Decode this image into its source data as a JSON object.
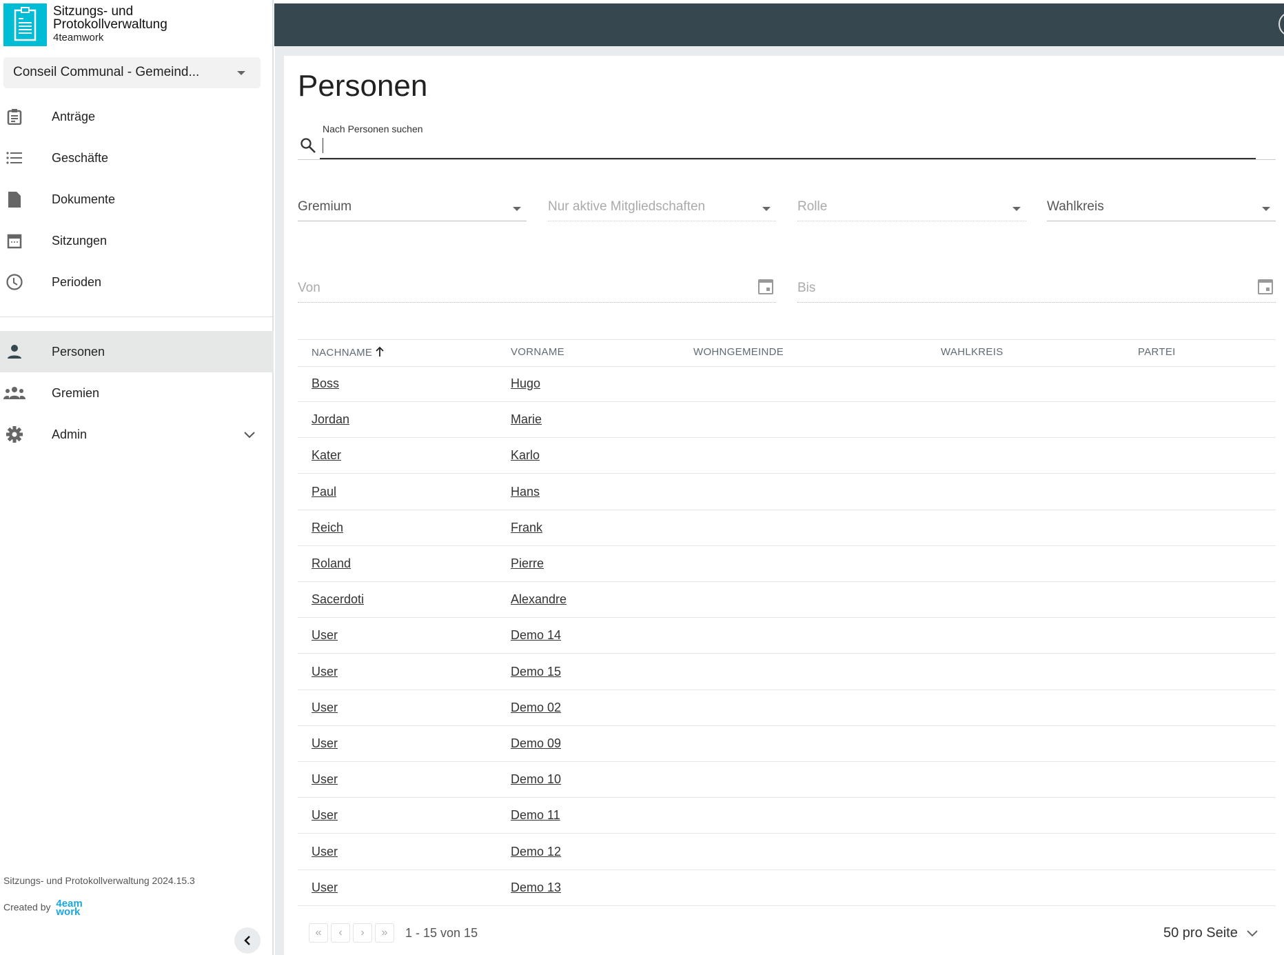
{
  "app": {
    "title_line1": "Sitzungs- und",
    "title_line2": "Protokollverwaltung",
    "subtitle": "4teamwork"
  },
  "context_select": {
    "value": "Conseil Communal - Gemeind..."
  },
  "nav": [
    {
      "label": "Anträge",
      "icon": "clipboard-icon"
    },
    {
      "label": "Geschäfte",
      "icon": "list-icon"
    },
    {
      "label": "Dokumente",
      "icon": "document-icon"
    },
    {
      "label": "Sitzungen",
      "icon": "calendar-icon"
    },
    {
      "label": "Perioden",
      "icon": "clock-icon"
    }
  ],
  "nav2": [
    {
      "label": "Personen",
      "icon": "person-icon",
      "active": true
    },
    {
      "label": "Gremien",
      "icon": "group-icon"
    },
    {
      "label": "Admin",
      "icon": "gear-icon",
      "expandable": true
    }
  ],
  "footer": {
    "version": "Sitzungs- und Protokollverwaltung 2024.15.3",
    "created_by": "Created by",
    "logo_text_1": "4eam",
    "logo_text_2": "work"
  },
  "page": {
    "title": "Personen"
  },
  "search": {
    "label": "Nach Personen suchen",
    "value": ""
  },
  "filters": {
    "gremium": "Gremium",
    "mitgliedschaften": "Nur aktive Mitgliedschaften",
    "rolle": "Rolle",
    "wahlkreis": "Wahlkreis",
    "von": "Von",
    "bis": "Bis"
  },
  "table": {
    "columns": [
      "NACHNAME",
      "VORNAME",
      "WOHNGEMEINDE",
      "WAHLKREIS",
      "PARTEI"
    ],
    "sort": {
      "column": "NACHNAME",
      "direction": "asc"
    },
    "rows": [
      [
        "Boss",
        "Hugo"
      ],
      [
        "Jordan",
        "Marie"
      ],
      [
        "Kater",
        "Karlo"
      ],
      [
        "Paul",
        "Hans"
      ],
      [
        "Reich",
        "Frank"
      ],
      [
        "Roland",
        "Pierre"
      ],
      [
        "Sacerdoti",
        "Alexandre"
      ],
      [
        "User",
        "Demo 14"
      ],
      [
        "User",
        "Demo 15"
      ],
      [
        "User",
        "Demo 02"
      ],
      [
        "User",
        "Demo 09"
      ],
      [
        "User",
        "Demo 10"
      ],
      [
        "User",
        "Demo 11"
      ],
      [
        "User",
        "Demo 12"
      ],
      [
        "User",
        "Demo 13"
      ]
    ]
  },
  "pagination": {
    "range": "1 - 15 von 15",
    "page_size": "50 pro Seite"
  },
  "colors": {
    "header": "#37474f",
    "accent": "#00bcd4",
    "active_nav": "#e6e7e7"
  }
}
